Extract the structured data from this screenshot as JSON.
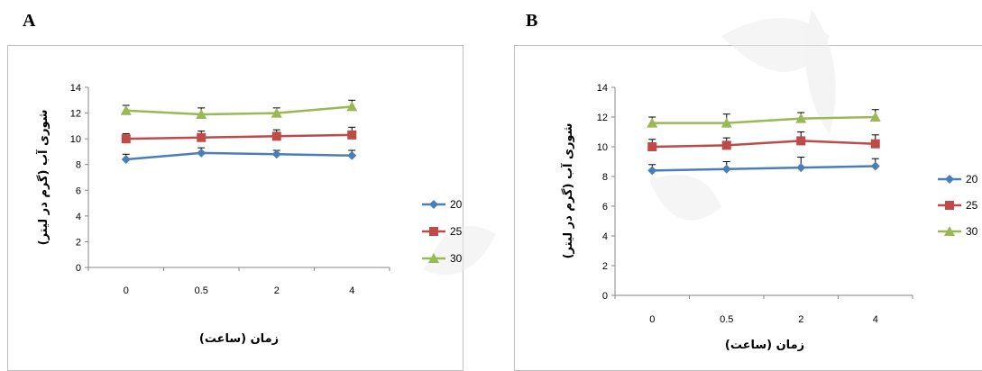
{
  "panels": [
    {
      "label": "A"
    },
    {
      "label": "B"
    }
  ],
  "chart_data": [
    {
      "type": "line",
      "categories": [
        "0",
        "0.5",
        "2",
        "4"
      ],
      "xlabel": "زمان (ساعت)",
      "ylabel": "شوری آب (گرم در لیتر)",
      "ylim": [
        0,
        14
      ],
      "yticks": [
        0,
        2,
        4,
        6,
        8,
        10,
        12,
        14
      ],
      "grid": false,
      "legend_position": "right",
      "series": [
        {
          "name": "20",
          "values": [
            8.4,
            8.9,
            8.8,
            8.7
          ],
          "errors": [
            0.4,
            0.4,
            0.3,
            0.4
          ],
          "color": "#4a7ebb",
          "marker": "diamond"
        },
        {
          "name": "25",
          "values": [
            10.0,
            10.1,
            10.2,
            10.3
          ],
          "errors": [
            0.4,
            0.5,
            0.5,
            0.6
          ],
          "color": "#be4b48",
          "marker": "square"
        },
        {
          "name": "30",
          "values": [
            12.2,
            11.9,
            12.0,
            12.5
          ],
          "errors": [
            0.4,
            0.5,
            0.4,
            0.5
          ],
          "color": "#98b954",
          "marker": "triangle"
        }
      ]
    },
    {
      "type": "line",
      "categories": [
        "0",
        "0.5",
        "2",
        "4"
      ],
      "xlabel": "زمان (ساعت)",
      "ylabel": "شوری آب (گرم در لیتر)",
      "ylim": [
        0,
        14
      ],
      "yticks": [
        0,
        2,
        4,
        6,
        8,
        10,
        12,
        14
      ],
      "grid": false,
      "legend_position": "right",
      "series": [
        {
          "name": "20",
          "values": [
            8.4,
            8.5,
            8.6,
            8.7
          ],
          "errors": [
            0.4,
            0.5,
            0.7,
            0.5
          ],
          "color": "#4a7ebb",
          "marker": "diamond"
        },
        {
          "name": "25",
          "values": [
            10.0,
            10.1,
            10.4,
            10.2
          ],
          "errors": [
            0.5,
            0.5,
            0.6,
            0.6
          ],
          "color": "#be4b48",
          "marker": "square"
        },
        {
          "name": "30",
          "values": [
            11.6,
            11.6,
            11.9,
            12.0
          ],
          "errors": [
            0.4,
            0.6,
            0.4,
            0.5
          ],
          "color": "#98b954",
          "marker": "triangle"
        }
      ]
    }
  ]
}
